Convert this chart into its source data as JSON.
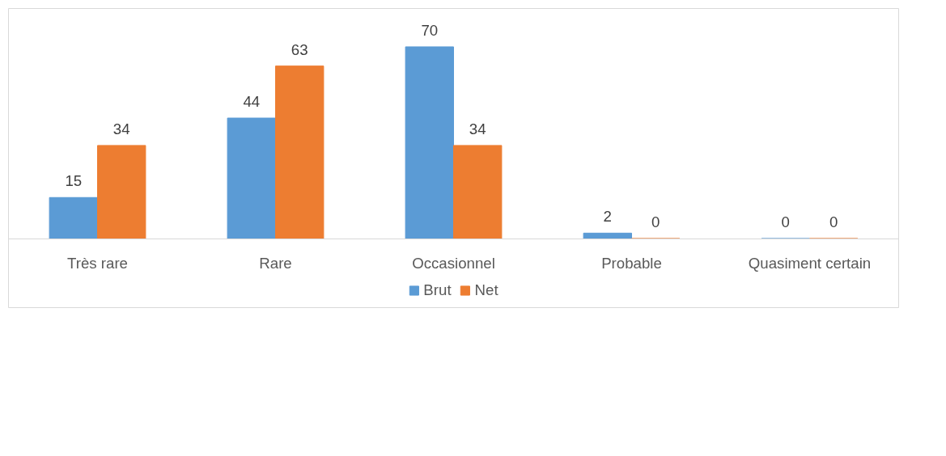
{
  "chart_data": {
    "type": "bar",
    "categories": [
      "Très rare",
      "Rare",
      "Occasionnel",
      "Probable",
      "Quasiment certain"
    ],
    "series": [
      {
        "name": "Brut",
        "color": "#5b9bd5",
        "values": [
          15,
          44,
          70,
          2,
          0
        ]
      },
      {
        "name": "Net",
        "color": "#ed7d31",
        "values": [
          34,
          63,
          34,
          0,
          0
        ]
      }
    ],
    "data_labels": true,
    "grid": false,
    "legend": "bottom"
  }
}
